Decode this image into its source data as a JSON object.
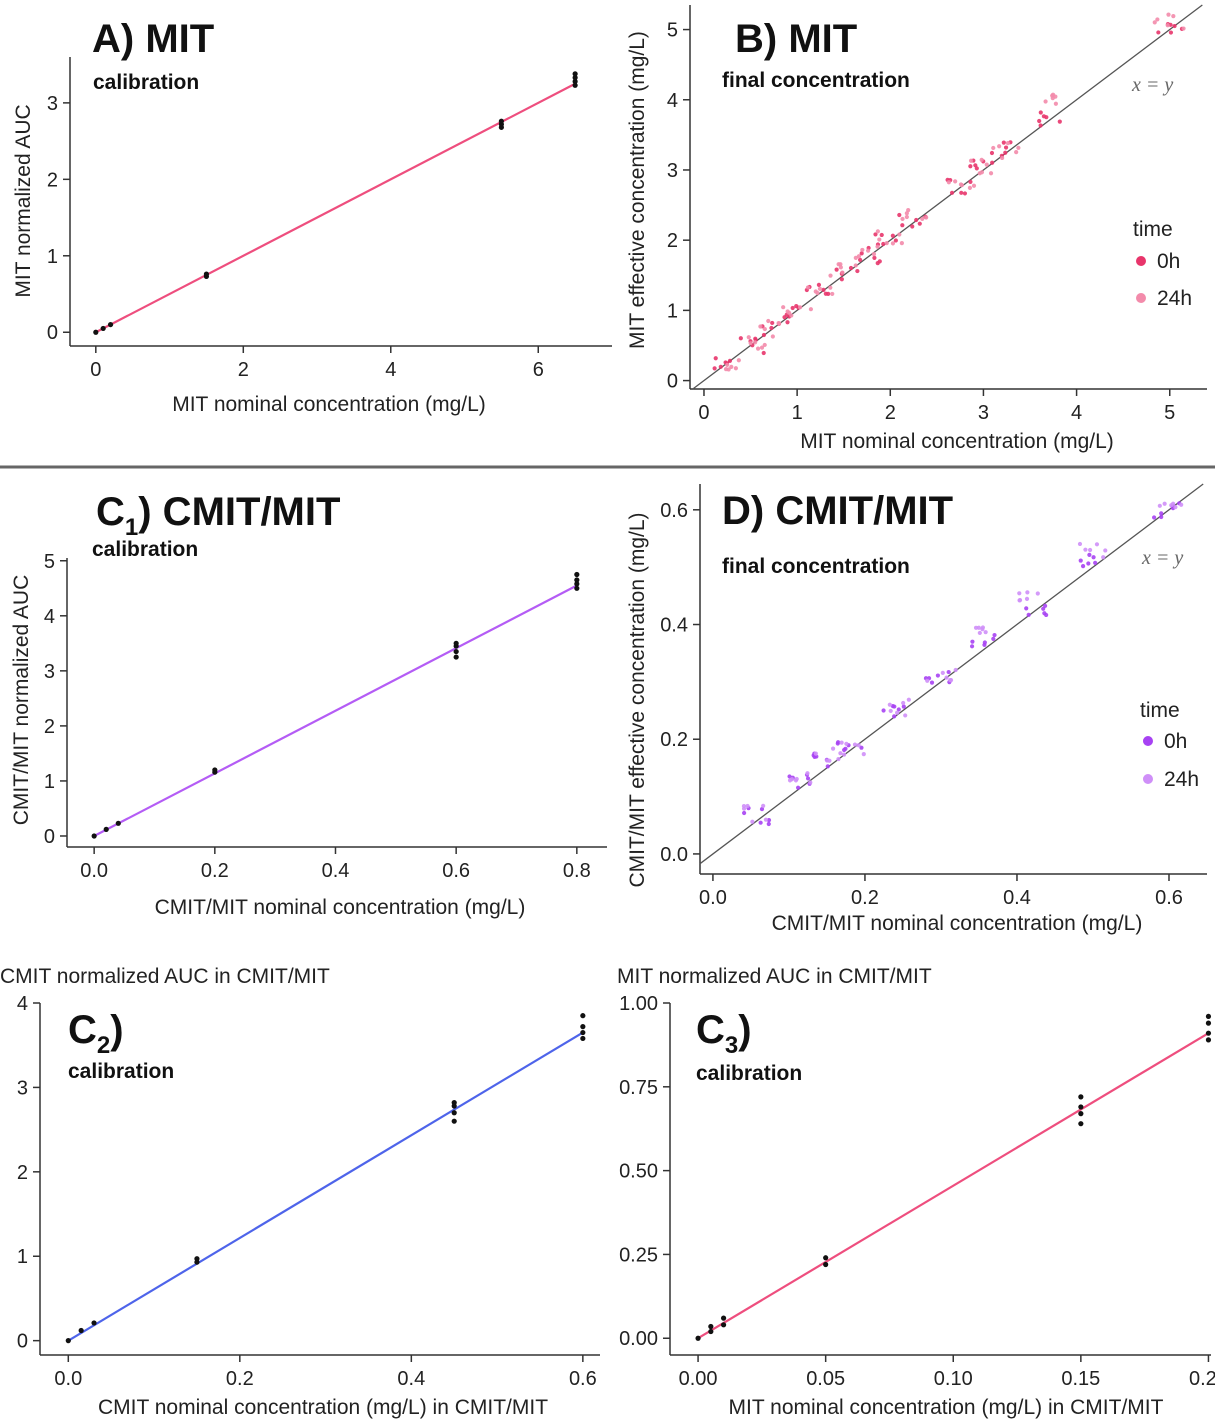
{
  "chart_data": [
    {
      "id": "A",
      "type": "scatter",
      "title": "A) MIT",
      "subtitle": "calibration",
      "xlabel": "MIT nominal concentration (mg/L)",
      "ylabel": "MIT normalized AUC",
      "xlim": [
        -0.35,
        7.0
      ],
      "ylim": [
        -0.18,
        3.6
      ],
      "xticks": [
        "0",
        "2",
        "4",
        "6"
      ],
      "xtick_values": [
        0,
        2,
        4,
        6
      ],
      "yticks": [
        "0",
        "1",
        "2",
        "3"
      ],
      "ytick_values": [
        0,
        1,
        2,
        3
      ],
      "grid": false,
      "fit_line": {
        "color": "#ee4e7e",
        "x": [
          0,
          6.5
        ],
        "y": [
          0.0,
          3.25
        ]
      },
      "series": [
        {
          "color": "#111111",
          "x": [
            0,
            0.1,
            0.2,
            1.5,
            1.5,
            5.5,
            5.5,
            5.5,
            6.5,
            6.5,
            6.5,
            6.5
          ],
          "y": [
            0.0,
            0.05,
            0.1,
            0.73,
            0.76,
            2.68,
            2.72,
            2.76,
            3.23,
            3.28,
            3.33,
            3.38
          ]
        }
      ]
    },
    {
      "id": "B",
      "type": "scatter",
      "title": "B) MIT",
      "subtitle": "final concentration",
      "xlabel": "MIT nominal concentration (mg/L)",
      "ylabel": "MIT effective concentration (mg/L)",
      "xlim": [
        -0.15,
        5.4
      ],
      "ylim": [
        -0.12,
        5.35
      ],
      "xticks": [
        "0",
        "1",
        "2",
        "3",
        "4",
        "5"
      ],
      "xtick_values": [
        0,
        1,
        2,
        3,
        4,
        5
      ],
      "yticks": [
        "0",
        "1",
        "2",
        "3",
        "4",
        "5"
      ],
      "ytick_values": [
        0,
        1,
        2,
        3,
        4,
        5
      ],
      "grid": false,
      "identity_line": true,
      "annotation": "x = y",
      "legend": {
        "title": "time",
        "position": "right",
        "entries": [
          {
            "label": "0h",
            "color": "#e8356b"
          },
          {
            "label": "24h",
            "color": "#f38bab"
          }
        ]
      },
      "series": [
        {
          "name": "0h",
          "color": "#e8356b",
          "x": [
            0.25,
            0.5,
            0.75,
            1.0,
            1.25,
            1.5,
            1.75,
            2.0,
            2.25,
            2.75,
            3.0,
            3.25,
            3.75,
            5.0
          ],
          "y": [
            0.26,
            0.5,
            0.76,
            1.0,
            1.27,
            1.52,
            1.78,
            2.05,
            2.28,
            2.75,
            3.02,
            3.3,
            3.72,
            5.05
          ]
        },
        {
          "name": "24h",
          "color": "#f38bab",
          "x": [
            0.25,
            0.5,
            0.75,
            1.0,
            1.25,
            1.5,
            1.75,
            2.0,
            2.25,
            2.75,
            3.0,
            3.25,
            3.75,
            5.0
          ],
          "y": [
            0.27,
            0.52,
            0.74,
            1.02,
            1.25,
            1.55,
            1.8,
            2.06,
            2.35,
            2.8,
            3.05,
            3.28,
            3.98,
            5.1
          ]
        }
      ]
    },
    {
      "id": "C1",
      "type": "scatter",
      "title": "C",
      "title_sub": "1",
      "title_rest": ") CMIT/MIT",
      "subtitle": "calibration",
      "xlabel": "CMIT/MIT nominal concentration (mg/L)",
      "ylabel": "CMIT/MIT normalized AUC",
      "xlim": [
        -0.045,
        0.85
      ],
      "ylim": [
        -0.2,
        5.05
      ],
      "xticks": [
        "0.0",
        "0.2",
        "0.4",
        "0.6",
        "0.8"
      ],
      "xtick_values": [
        0,
        0.2,
        0.4,
        0.6,
        0.8
      ],
      "yticks": [
        "0",
        "1",
        "2",
        "3",
        "4",
        "5"
      ],
      "ytick_values": [
        0,
        1,
        2,
        3,
        4,
        5
      ],
      "grid": false,
      "fit_line": {
        "color": "#b45cf5",
        "x": [
          0,
          0.8
        ],
        "y": [
          0.0,
          4.55
        ]
      },
      "series": [
        {
          "color": "#111111",
          "x": [
            0,
            0.02,
            0.04,
            0.2,
            0.2,
            0.6,
            0.6,
            0.6,
            0.6,
            0.8,
            0.8,
            0.8,
            0.8
          ],
          "y": [
            0.0,
            0.12,
            0.23,
            1.16,
            1.2,
            3.25,
            3.35,
            3.45,
            3.5,
            4.5,
            4.58,
            4.65,
            4.75
          ]
        }
      ]
    },
    {
      "id": "D",
      "type": "scatter",
      "title": "D) CMIT/MIT",
      "subtitle": "final concentration",
      "xlabel": "CMIT/MIT nominal concentration (mg/L)",
      "ylabel": "CMIT/MIT effective concentration (mg/L)",
      "xlim": [
        -0.017,
        0.65
      ],
      "ylim": [
        -0.035,
        0.645
      ],
      "xticks": [
        "0.0",
        "0.2",
        "0.4",
        "0.6"
      ],
      "xtick_values": [
        0,
        0.2,
        0.4,
        0.6
      ],
      "yticks": [
        "0.0",
        "0.2",
        "0.4",
        "0.6"
      ],
      "ytick_values": [
        0,
        0.2,
        0.4,
        0.6
      ],
      "grid": false,
      "identity_line": true,
      "annotation": "x = y",
      "legend": {
        "title": "time",
        "position": "right",
        "entries": [
          {
            "label": "0h",
            "color": "#a742f3"
          },
          {
            "label": "24h",
            "color": "#cf8ff8"
          }
        ]
      },
      "series": [
        {
          "name": "0h",
          "color": "#a742f3",
          "x": [
            0.06,
            0.12,
            0.15,
            0.18,
            0.24,
            0.3,
            0.36,
            0.42,
            0.5,
            0.6
          ],
          "y": [
            0.066,
            0.128,
            0.165,
            0.19,
            0.25,
            0.305,
            0.37,
            0.425,
            0.51,
            0.6
          ]
        },
        {
          "name": "24h",
          "color": "#cf8ff8",
          "x": [
            0.06,
            0.12,
            0.15,
            0.18,
            0.24,
            0.3,
            0.36,
            0.42,
            0.5,
            0.6
          ],
          "y": [
            0.07,
            0.13,
            0.17,
            0.185,
            0.255,
            0.31,
            0.385,
            0.445,
            0.53,
            0.615
          ]
        }
      ]
    },
    {
      "id": "C2",
      "type": "scatter",
      "title": "C",
      "title_sub": "2",
      "title_rest": ")",
      "subtitle": "calibration",
      "corner_label": "CMIT normalized AUC in CMIT/MIT",
      "xlabel": "CMIT nominal concentration (mg/L) in CMIT/MIT",
      "ylabel": "",
      "xlim": [
        -0.033,
        0.62
      ],
      "ylim": [
        -0.17,
        4.0
      ],
      "xticks": [
        "0.0",
        "0.2",
        "0.4",
        "0.6"
      ],
      "xtick_values": [
        0,
        0.2,
        0.4,
        0.6
      ],
      "yticks": [
        "0",
        "1",
        "2",
        "3",
        "4"
      ],
      "ytick_values": [
        0,
        1,
        2,
        3,
        4
      ],
      "grid": false,
      "fit_line": {
        "color": "#4e64ea",
        "x": [
          0,
          0.6
        ],
        "y": [
          0.0,
          3.65
        ]
      },
      "series": [
        {
          "color": "#111111",
          "x": [
            0,
            0.015,
            0.03,
            0.15,
            0.15,
            0.45,
            0.45,
            0.45,
            0.45,
            0.6,
            0.6,
            0.6,
            0.6
          ],
          "y": [
            0.0,
            0.12,
            0.21,
            0.93,
            0.97,
            2.6,
            2.7,
            2.78,
            2.82,
            3.58,
            3.65,
            3.72,
            3.85
          ]
        }
      ]
    },
    {
      "id": "C3",
      "type": "scatter",
      "title": "C",
      "title_sub": "3",
      "title_rest": ")",
      "subtitle": "calibration",
      "corner_label": "MIT normalized AUC in CMIT/MIT",
      "xlabel": "MIT nominal concentration (mg/L) in CMIT/MIT",
      "ylabel": "",
      "xlim": [
        -0.011,
        0.201
      ],
      "ylim": [
        -0.05,
        1.0
      ],
      "xticks": [
        "0.00",
        "0.05",
        "0.10",
        "0.15",
        "0.20"
      ],
      "xtick_values": [
        0,
        0.05,
        0.1,
        0.15,
        0.2
      ],
      "yticks": [
        "0.00",
        "0.25",
        "0.50",
        "0.75",
        "1.00"
      ],
      "ytick_values": [
        0,
        0.25,
        0.5,
        0.75,
        1.0
      ],
      "grid": false,
      "fit_line": {
        "color": "#ee4e7e",
        "x": [
          0,
          0.2
        ],
        "y": [
          0.0,
          0.91
        ]
      },
      "series": [
        {
          "color": "#111111",
          "x": [
            0,
            0.005,
            0.005,
            0.01,
            0.01,
            0.05,
            0.05,
            0.15,
            0.15,
            0.15,
            0.15,
            0.2,
            0.2,
            0.2,
            0.2
          ],
          "y": [
            0.0,
            0.02,
            0.035,
            0.04,
            0.06,
            0.22,
            0.24,
            0.64,
            0.67,
            0.69,
            0.72,
            0.89,
            0.91,
            0.94,
            0.96
          ]
        }
      ]
    }
  ]
}
